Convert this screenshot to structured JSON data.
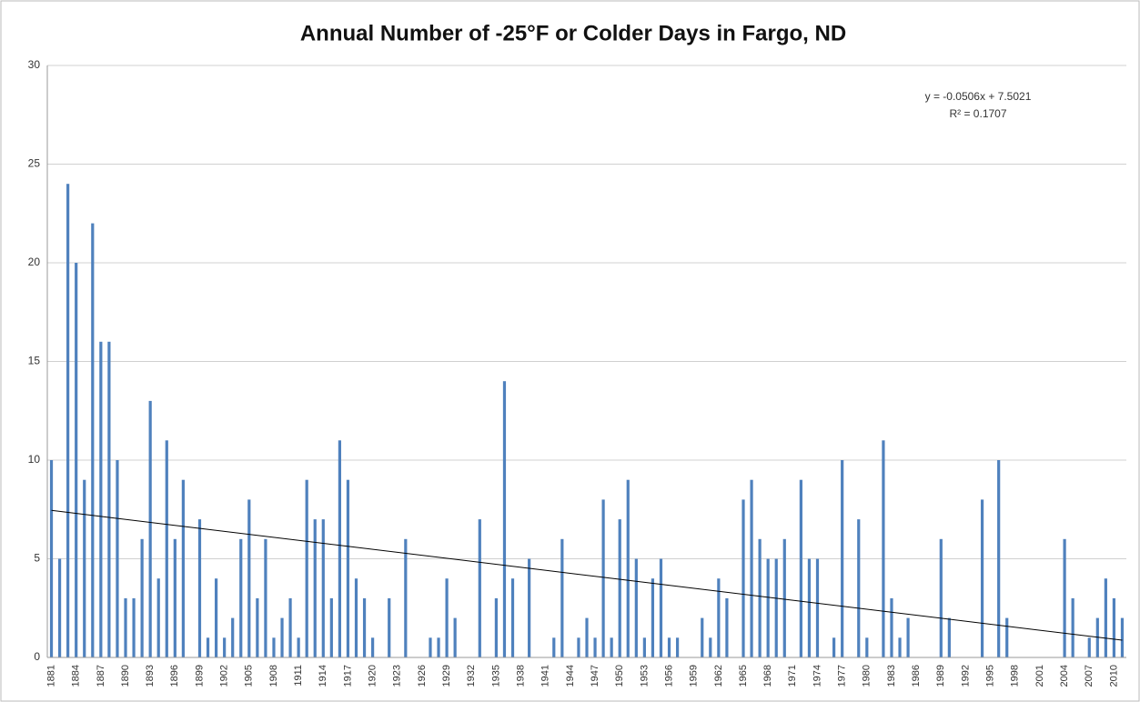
{
  "chart_data": {
    "type": "bar",
    "title": "Annual Number of -25°F or Colder Days in Fargo, ND",
    "categories": [
      "1881",
      null,
      null,
      "1884",
      null,
      null,
      "1887",
      null,
      null,
      "1890",
      null,
      null,
      "1893",
      null,
      null,
      "1896",
      null,
      null,
      "1899",
      null,
      null,
      "1902",
      null,
      null,
      "1905",
      null,
      null,
      "1908",
      null,
      null,
      "1911",
      null,
      null,
      "1914",
      null,
      null,
      "1917",
      null,
      null,
      "1920",
      null,
      null,
      "1923",
      null,
      null,
      "1926",
      null,
      null,
      "1929",
      null,
      null,
      "1932",
      null,
      null,
      "1935",
      null,
      null,
      "1938",
      null,
      null,
      "1941",
      null,
      null,
      "1944",
      null,
      null,
      "1947",
      null,
      null,
      "1950",
      null,
      null,
      "1953",
      null,
      null,
      "1956",
      null,
      null,
      "1959",
      null,
      null,
      "1962",
      null,
      null,
      "1965",
      null,
      null,
      "1968",
      null,
      null,
      "1971",
      null,
      null,
      "1974",
      null,
      null,
      "1977",
      null,
      null,
      "1980",
      null,
      null,
      "1983",
      null,
      null,
      "1986",
      null,
      null,
      "1989",
      null,
      null,
      "1992",
      null,
      null,
      "1995",
      null,
      null,
      "1998",
      null,
      null,
      "2001",
      null,
      null,
      "2004",
      null,
      null,
      "2007",
      null,
      null,
      "2010",
      null
    ],
    "values": [
      10,
      5,
      24,
      20,
      9,
      22,
      16,
      16,
      10,
      3,
      3,
      6,
      13,
      4,
      11,
      6,
      9,
      0,
      7,
      1,
      4,
      1,
      2,
      6,
      8,
      3,
      6,
      1,
      2,
      3,
      1,
      9,
      7,
      7,
      3,
      11,
      9,
      4,
      3,
      1,
      0,
      3,
      0,
      6,
      0,
      0,
      1,
      1,
      4,
      2,
      0,
      0,
      7,
      0,
      3,
      14,
      4,
      0,
      5,
      0,
      0,
      1,
      6,
      0,
      1,
      2,
      1,
      8,
      1,
      7,
      9,
      5,
      1,
      4,
      5,
      1,
      1,
      0,
      0,
      2,
      1,
      4,
      3,
      0,
      8,
      9,
      6,
      5,
      5,
      6,
      0,
      9,
      5,
      5,
      0,
      1,
      10,
      0,
      7,
      1,
      0,
      11,
      3,
      1,
      2,
      0,
      0,
      0,
      6,
      2,
      0,
      0,
      0,
      8,
      0,
      10,
      2,
      0,
      0,
      0,
      0,
      0,
      0,
      6,
      3,
      0,
      1,
      2,
      4,
      3,
      2
    ],
    "color": "#4f81bd",
    "ylim": [
      0,
      30
    ],
    "yticks": [
      0,
      5,
      10,
      15,
      20,
      25,
      30
    ],
    "grid": true,
    "trendline": {
      "slope": -0.0506,
      "intercept": 7.5021,
      "equation": "y = -0.0506x + 7.5021",
      "r_squared": "R² = 0.1707",
      "color": "#000000"
    }
  }
}
